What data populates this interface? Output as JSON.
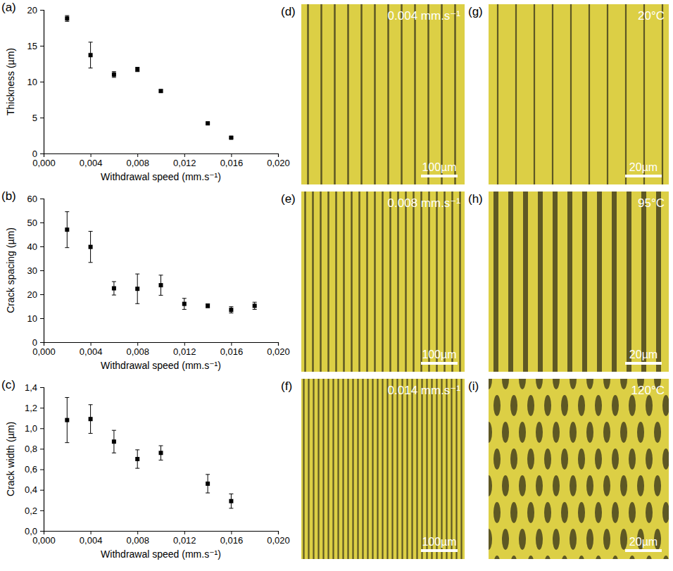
{
  "chart_data": [
    {
      "type": "scatter",
      "title": "(a)",
      "x_label": "Withdrawal speed (mm.s⁻¹)",
      "y_label": "Thickness (µm)",
      "marker": "square",
      "color": "#000000",
      "x": [
        0.002,
        0.004,
        0.006,
        0.008,
        0.01,
        0.014,
        0.016
      ],
      "series": [
        {
          "values": [
            18.8,
            13.7,
            11.0,
            11.7,
            8.7,
            4.2,
            2.2
          ],
          "errors": [
            0.4,
            1.8,
            0.4,
            0.3,
            0.15,
            0.1,
            0.1
          ]
        }
      ],
      "xlim": [
        0,
        0.02
      ],
      "xticks": [
        {
          "value": 0,
          "label": "0,000"
        },
        {
          "value": 0.004,
          "label": "0,004"
        },
        {
          "value": 0.008,
          "label": "0,008"
        },
        {
          "value": 0.012,
          "label": "0,012"
        },
        {
          "value": 0.016,
          "label": "0,016"
        },
        {
          "value": 0.02,
          "label": "0,020"
        }
      ],
      "ylim": [
        0,
        20
      ],
      "yticks": [
        0,
        5,
        10,
        15,
        20
      ]
    },
    {
      "type": "scatter",
      "title": "(b)",
      "x_label": "Withdrawal speed (mm.s⁻¹)",
      "y_label": "Crack spacing (µm)",
      "marker": "square",
      "color": "#000000",
      "x": [
        0.002,
        0.004,
        0.006,
        0.008,
        0.01,
        0.012,
        0.014,
        0.016,
        0.018
      ],
      "series": [
        {
          "values": [
            47,
            39.8,
            22.5,
            22.3,
            23.8,
            16,
            15.2,
            13.5,
            15.2
          ],
          "errors": [
            7.5,
            6.5,
            2.8,
            6.2,
            4.2,
            2.3,
            0.8,
            1.3,
            1.5
          ]
        }
      ],
      "xlim": [
        0,
        0.02
      ],
      "xticks": [
        {
          "value": 0,
          "label": "0,000"
        },
        {
          "value": 0.004,
          "label": "0,004"
        },
        {
          "value": 0.008,
          "label": "0,008"
        },
        {
          "value": 0.012,
          "label": "0,012"
        },
        {
          "value": 0.016,
          "label": "0,016"
        },
        {
          "value": 0.02,
          "label": "0,020"
        }
      ],
      "ylim": [
        0,
        60
      ],
      "yticks": [
        0,
        10,
        20,
        30,
        40,
        50,
        60
      ]
    },
    {
      "type": "scatter",
      "title": "(c)",
      "x_label": "Withdrawal speed (mm.s⁻¹)",
      "y_label": "Crack width (µm)",
      "marker": "square",
      "color": "#000000",
      "x": [
        0.002,
        0.004,
        0.006,
        0.008,
        0.01,
        0.014,
        0.016
      ],
      "series": [
        {
          "values": [
            1.08,
            1.09,
            0.87,
            0.7,
            0.76,
            0.46,
            0.29
          ],
          "errors": [
            0.22,
            0.14,
            0.11,
            0.09,
            0.07,
            0.09,
            0.07
          ]
        }
      ],
      "xlim": [
        0,
        0.02
      ],
      "xticks": [
        {
          "value": 0,
          "label": "0,000"
        },
        {
          "value": 0.004,
          "label": "0,004"
        },
        {
          "value": 0.008,
          "label": "0,008"
        },
        {
          "value": 0.012,
          "label": "0,012"
        },
        {
          "value": 0.016,
          "label": "0,016"
        },
        {
          "value": 0.02,
          "label": "0,020"
        }
      ],
      "ylim": [
        0,
        1.4
      ],
      "yticks": [
        {
          "value": 0,
          "label": "0,0"
        },
        {
          "value": 0.2,
          "label": "0,2"
        },
        {
          "value": 0.4,
          "label": "0,4"
        },
        {
          "value": 0.6,
          "label": "0,6"
        },
        {
          "value": 0.8,
          "label": "0,8"
        },
        {
          "value": 1.0,
          "label": "1,0"
        },
        {
          "value": 1.2,
          "label": "1,2"
        },
        {
          "value": 1.4,
          "label": "1,4"
        }
      ]
    }
  ],
  "images": [
    {
      "letter": "(d)",
      "label": "0.004 mm.s⁻¹",
      "scale_bar": "100µm"
    },
    {
      "letter": "(e)",
      "label": "0.008 mm.s⁻¹",
      "scale_bar": "100µm"
    },
    {
      "letter": "(f)",
      "label": "0.014 mm.s⁻¹",
      "scale_bar": "100µm"
    },
    {
      "letter": "(g)",
      "label": "20°C",
      "scale_bar": "20µm"
    },
    {
      "letter": "(h)",
      "label": "95°C",
      "scale_bar": "20µm"
    },
    {
      "letter": "(i)",
      "label": "120°C",
      "scale_bar": "20µm"
    }
  ]
}
